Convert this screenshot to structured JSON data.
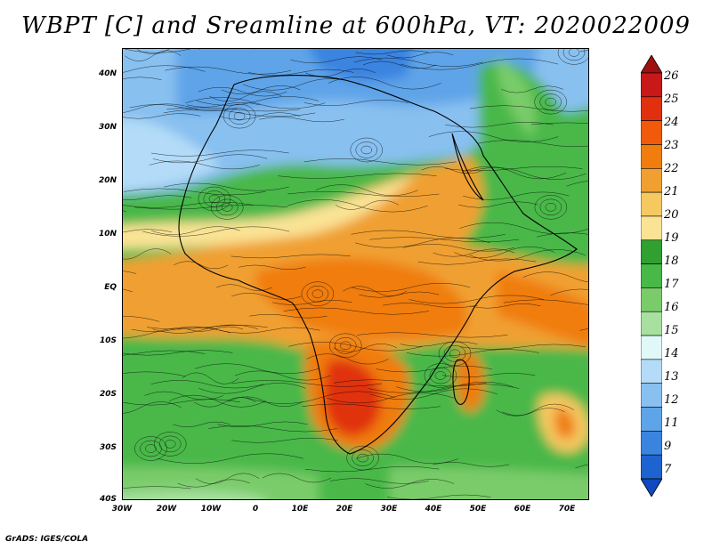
{
  "title": "WBPT [C] and Sreamline at 600hPa, VT: 2020022009",
  "footer": "GrADS: IGES/COLA",
  "map": {
    "region": "Africa",
    "lat_ticks": [
      "40N",
      "30N",
      "20N",
      "10N",
      "EQ",
      "10S",
      "20S",
      "30S",
      "40S"
    ],
    "lon_ticks": [
      "30W",
      "20W",
      "10W",
      "0",
      "10E",
      "20E",
      "30E",
      "40E",
      "50E",
      "60E",
      "70E"
    ],
    "lat_range": [
      -40,
      45
    ],
    "lon_range": [
      -30,
      75
    ]
  },
  "colorbar": {
    "labels": [
      "26",
      "25",
      "24",
      "23",
      "22",
      "21",
      "20",
      "19",
      "18",
      "17",
      "16",
      "15",
      "14",
      "13",
      "12",
      "11",
      "9",
      "7"
    ],
    "colors": [
      "#a01010",
      "#c81818",
      "#e03010",
      "#f05a0a",
      "#f07d0e",
      "#f0a030",
      "#f5c860",
      "#fae394",
      "#30a030",
      "#48b848",
      "#7acc6a",
      "#a8e0a0",
      "#e0f8f8",
      "#b4dcf8",
      "#88c0f0",
      "#5ea4e8",
      "#3a84e0",
      "#1e64d0",
      "#1248c0"
    ]
  }
}
